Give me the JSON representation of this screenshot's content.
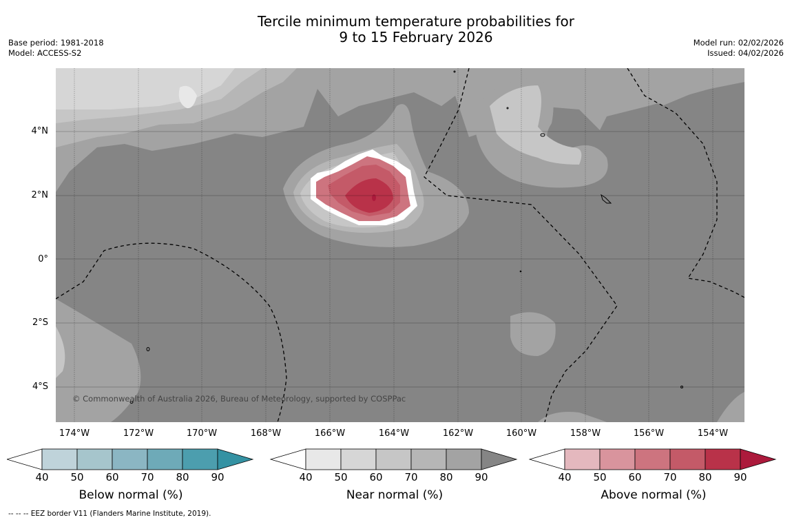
{
  "title": {
    "line1": "Tercile minimum temperature probabilities for",
    "line2": "9 to 15 February 2026"
  },
  "meta_left": {
    "base_period": "Base period: 1981-2018",
    "model": "Model: ACCESS-S2"
  },
  "meta_right": {
    "model_run": "Model run: 02/02/2026",
    "issued": "Issued: 04/02/2026"
  },
  "map": {
    "lat_labels": [
      "4°N",
      "2°N",
      "0°",
      "2°S",
      "4°S"
    ],
    "lon_labels": [
      "174°W",
      "172°W",
      "170°W",
      "168°W",
      "166°W",
      "164°W",
      "162°W",
      "160°W",
      "158°W",
      "156°W",
      "154°W"
    ],
    "copyright": "© Commonwealth of Australia 2026, Bureau of Meteorology, supported by COSPPac",
    "background_color": "#858585"
  },
  "colorbars": [
    {
      "title": "Below normal (%)",
      "ticks": [
        "40",
        "50",
        "60",
        "70",
        "80",
        "90"
      ],
      "colors": [
        "#bfd3da",
        "#a6c5cc",
        "#8bb6c3",
        "#6eaab8",
        "#4c9eae",
        "#3492a3"
      ]
    },
    {
      "title": "Near normal (%)",
      "ticks": [
        "40",
        "50",
        "60",
        "70",
        "80",
        "90"
      ],
      "colors": [
        "#e8e8e8",
        "#d6d6d6",
        "#c6c6c6",
        "#b6b6b6",
        "#a3a3a3",
        "#858585"
      ]
    },
    {
      "title": "Above normal (%)",
      "ticks": [
        "40",
        "50",
        "60",
        "70",
        "80",
        "90"
      ],
      "colors": [
        "#e4b8be",
        "#d9949d",
        "#cd747f",
        "#c45a68",
        "#b93249",
        "#ac1a3c"
      ]
    }
  ],
  "footnote": "--  --  -- EEZ border V11 (Flanders Marine Institute, 2019)."
}
